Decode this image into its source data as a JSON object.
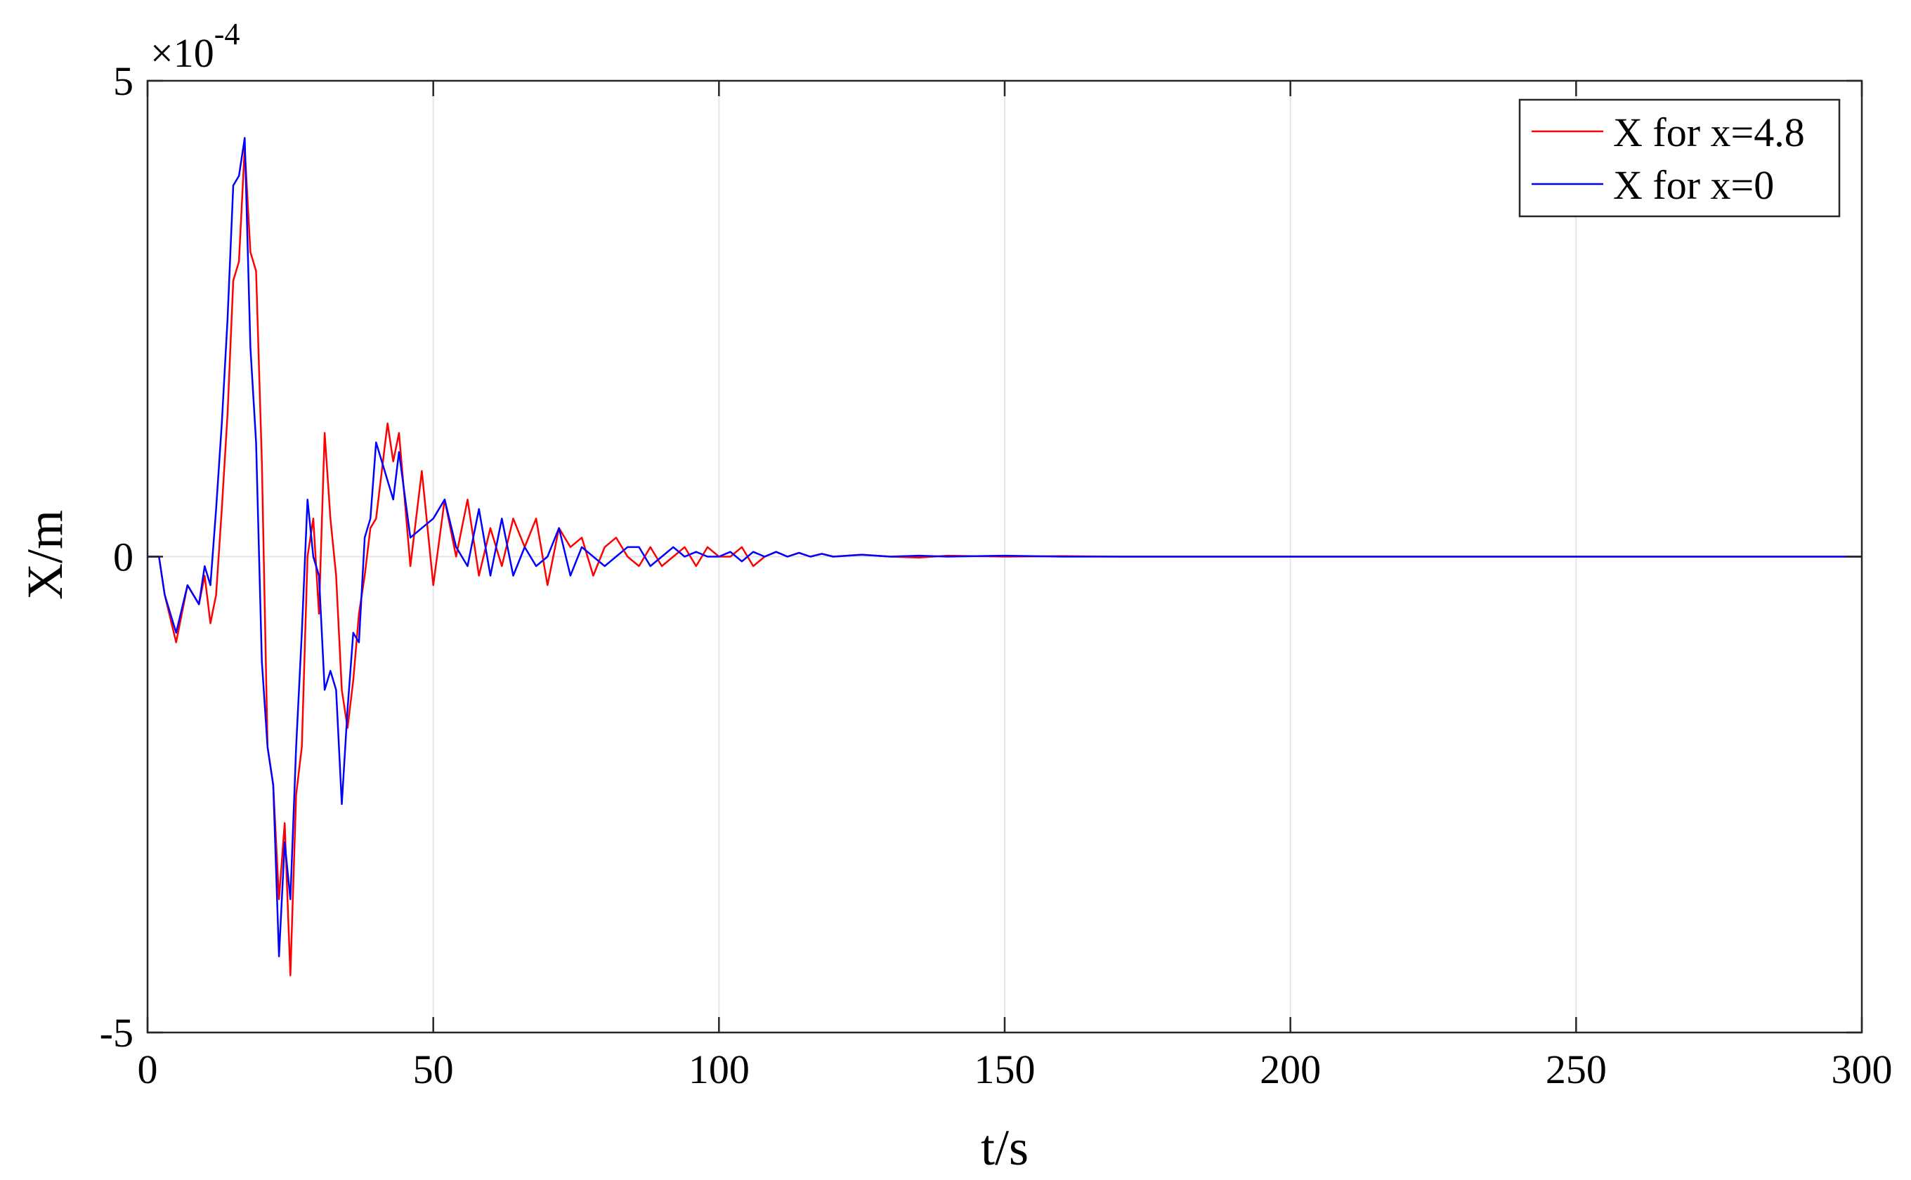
{
  "chart_data": {
    "type": "line",
    "title": "",
    "xlabel": "t/s",
    "ylabel": "X/m",
    "xlim": [
      0,
      300
    ],
    "ylim": [
      -5,
      5
    ],
    "y_scale_factor": "×10",
    "y_scale_exponent": "-4",
    "grid": "vertical",
    "legend_position": "top-right",
    "x_ticks": [
      0,
      50,
      100,
      150,
      200,
      250,
      300
    ],
    "x_tick_labels": [
      "0",
      "50",
      "100",
      "150",
      "200",
      "250",
      "300"
    ],
    "y_ticks": [
      -5,
      0,
      5
    ],
    "y_tick_labels": [
      "-5",
      "0",
      "5"
    ],
    "series": [
      {
        "name": "X for x=4.8",
        "color": "#ff0000",
        "x": [
          0,
          2,
          3,
          5,
          7,
          9,
          10,
          11,
          12,
          13,
          14,
          15,
          16,
          17,
          18,
          19,
          20,
          21,
          22,
          23,
          24,
          25,
          26,
          27,
          28,
          29,
          30,
          31,
          32,
          33,
          34,
          35,
          36,
          37,
          38,
          39,
          40,
          42,
          43,
          44,
          46,
          48,
          50,
          52,
          54,
          56,
          58,
          60,
          62,
          64,
          66,
          68,
          70,
          72,
          74,
          76,
          78,
          80,
          82,
          84,
          86,
          88,
          90,
          92,
          94,
          96,
          98,
          100,
          102,
          104,
          106,
          108,
          110,
          112,
          114,
          116,
          118,
          120,
          125,
          130,
          135,
          140,
          150,
          160,
          170,
          180,
          200,
          300
        ],
        "y": [
          0,
          0,
          -0.4,
          -0.9,
          -0.3,
          -0.5,
          -0.2,
          -0.7,
          -0.4,
          0.5,
          1.5,
          2.9,
          3.1,
          4.3,
          3.2,
          3.0,
          1.0,
          -2.0,
          -2.4,
          -3.6,
          -2.8,
          -4.4,
          -2.5,
          -2.0,
          0.0,
          0.4,
          -0.6,
          1.3,
          0.4,
          -0.2,
          -1.4,
          -1.8,
          -1.3,
          -0.6,
          -0.2,
          0.3,
          0.4,
          1.4,
          1.0,
          1.3,
          -0.1,
          0.9,
          -0.3,
          0.6,
          0.0,
          0.6,
          -0.2,
          0.3,
          -0.1,
          0.4,
          0.1,
          0.4,
          -0.3,
          0.3,
          0.1,
          0.2,
          -0.2,
          0.1,
          0.2,
          0.0,
          -0.1,
          0.1,
          -0.1,
          0.0,
          0.1,
          -0.1,
          0.1,
          0.0,
          0.0,
          0.1,
          -0.1,
          0.0,
          0.05,
          0.0,
          0.04,
          0.0,
          0.03,
          0.0,
          0.02,
          0.0,
          -0.01,
          0.01,
          0.0,
          0.005,
          0.0,
          0.0,
          0.0,
          0.0
        ]
      },
      {
        "name": "X for x=0",
        "color": "#0000ff",
        "x": [
          0,
          2,
          3,
          5,
          7,
          9,
          10,
          11,
          12,
          13,
          14,
          15,
          16,
          17,
          18,
          19,
          20,
          21,
          22,
          23,
          24,
          25,
          26,
          27,
          28,
          29,
          30,
          31,
          32,
          33,
          34,
          35,
          36,
          37,
          38,
          39,
          40,
          42,
          43,
          44,
          46,
          48,
          50,
          52,
          54,
          56,
          58,
          60,
          62,
          64,
          66,
          68,
          70,
          72,
          74,
          76,
          78,
          80,
          82,
          84,
          86,
          88,
          90,
          92,
          94,
          96,
          98,
          100,
          102,
          104,
          106,
          108,
          110,
          112,
          114,
          116,
          118,
          120,
          125,
          130,
          135,
          140,
          150,
          160,
          170,
          180,
          200,
          300
        ],
        "y": [
          0,
          0,
          -0.4,
          -0.8,
          -0.3,
          -0.5,
          -0.1,
          -0.3,
          0.5,
          1.4,
          2.5,
          3.9,
          4.0,
          4.4,
          2.2,
          1.2,
          -1.1,
          -2.0,
          -2.4,
          -4.2,
          -3.0,
          -3.6,
          -2.0,
          -0.8,
          0.6,
          0.0,
          -0.2,
          -1.4,
          -1.2,
          -1.4,
          -2.6,
          -1.6,
          -0.8,
          -0.9,
          0.2,
          0.4,
          1.2,
          0.8,
          0.6,
          1.1,
          0.2,
          0.3,
          0.4,
          0.6,
          0.1,
          -0.1,
          0.5,
          -0.2,
          0.4,
          -0.2,
          0.1,
          -0.1,
          0.0,
          0.3,
          -0.2,
          0.1,
          0.0,
          -0.1,
          0.0,
          0.1,
          0.1,
          -0.1,
          0.0,
          0.1,
          0.0,
          0.05,
          0.0,
          0.0,
          0.05,
          -0.05,
          0.05,
          0.0,
          0.05,
          0.0,
          0.04,
          0.0,
          0.03,
          0.0,
          0.02,
          0.0,
          0.01,
          0.0,
          0.01,
          0.0,
          0.0,
          0.0,
          0.0,
          0.0
        ]
      }
    ]
  }
}
